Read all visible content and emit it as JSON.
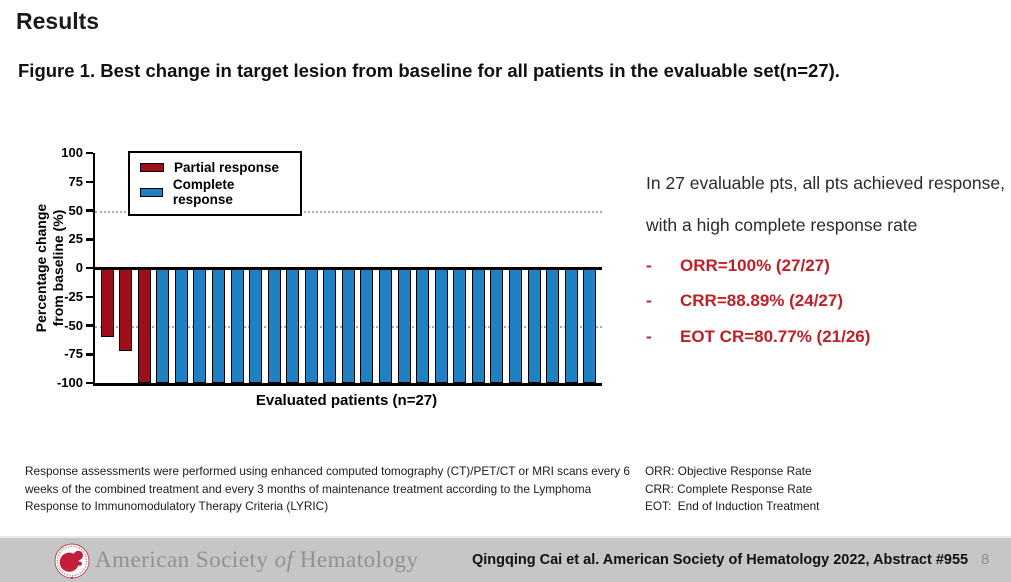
{
  "slide": {
    "title": "Results",
    "figure_title": "Figure 1. Best change in target lesion from baseline for all patients in the evaluable set(n=27)."
  },
  "chart_data": {
    "type": "bar",
    "title": "Best change in target lesion from baseline for all patients in the evaluable set (n=27)",
    "xlabel": "Evaluated patients (n=27)",
    "ylabel": "Percentage change from baseline (%)",
    "ylabel_lines": [
      "Percentage change",
      "from baseline (%)"
    ],
    "ylim": [
      -100,
      100
    ],
    "yticks": [
      100,
      75,
      50,
      25,
      0,
      -25,
      -50,
      -75,
      -100
    ],
    "reference_lines": [
      50,
      -50
    ],
    "grid": "dotted horizontal lines at +50 and -50",
    "legend_position": "top-left inside plot",
    "legend": [
      {
        "key": "partial",
        "label": "Partial response",
        "color": "#9e0f1b"
      },
      {
        "key": "complete",
        "label": "Complete response",
        "color": "#1f80c4"
      }
    ],
    "bars": [
      {
        "patient": 1,
        "value": -60,
        "response": "partial"
      },
      {
        "patient": 2,
        "value": -72,
        "response": "partial"
      },
      {
        "patient": 3,
        "value": -100,
        "response": "partial"
      },
      {
        "patient": 4,
        "value": -100,
        "response": "complete"
      },
      {
        "patient": 5,
        "value": -100,
        "response": "complete"
      },
      {
        "patient": 6,
        "value": -100,
        "response": "complete"
      },
      {
        "patient": 7,
        "value": -100,
        "response": "complete"
      },
      {
        "patient": 8,
        "value": -100,
        "response": "complete"
      },
      {
        "patient": 9,
        "value": -100,
        "response": "complete"
      },
      {
        "patient": 10,
        "value": -100,
        "response": "complete"
      },
      {
        "patient": 11,
        "value": -100,
        "response": "complete"
      },
      {
        "patient": 12,
        "value": -100,
        "response": "complete"
      },
      {
        "patient": 13,
        "value": -100,
        "response": "complete"
      },
      {
        "patient": 14,
        "value": -100,
        "response": "complete"
      },
      {
        "patient": 15,
        "value": -100,
        "response": "complete"
      },
      {
        "patient": 16,
        "value": -100,
        "response": "complete"
      },
      {
        "patient": 17,
        "value": -100,
        "response": "complete"
      },
      {
        "patient": 18,
        "value": -100,
        "response": "complete"
      },
      {
        "patient": 19,
        "value": -100,
        "response": "complete"
      },
      {
        "patient": 20,
        "value": -100,
        "response": "complete"
      },
      {
        "patient": 21,
        "value": -100,
        "response": "complete"
      },
      {
        "patient": 22,
        "value": -100,
        "response": "complete"
      },
      {
        "patient": 23,
        "value": -100,
        "response": "complete"
      },
      {
        "patient": 24,
        "value": -100,
        "response": "complete"
      },
      {
        "patient": 25,
        "value": -100,
        "response": "complete"
      },
      {
        "patient": 26,
        "value": -100,
        "response": "complete"
      },
      {
        "patient": 27,
        "value": -100,
        "response": "complete"
      }
    ]
  },
  "summary": {
    "intro": "In 27 evaluable pts, all pts achieved response, with a high complete response rate",
    "accent_color": "#be2026",
    "bullets": [
      {
        "marker": "-",
        "text": "ORR=100% (27/27)"
      },
      {
        "marker": "-",
        "text": "CRR=88.89% (24/27)"
      },
      {
        "marker": "-",
        "text": "EOT CR=80.77% (21/26)"
      }
    ]
  },
  "footnotes": {
    "methods": "Response assessments were performed using enhanced computed tomography (CT)/PET/CT or MRI scans every 6 weeks of the combined treatment and every 3 months of maintenance treatment according to the Lymphoma Response to Immunomodulatory Therapy Criteria (LYRIC)",
    "abbreviations": [
      "ORR: Objective Response Rate",
      "CRR: Complete Response Rate",
      "EOT:  End of Induction Treatment"
    ]
  },
  "footer": {
    "logo": "ash-logo",
    "logo_color": "#c2203a",
    "org_name_part1": "American Society ",
    "org_name_part2": "of",
    "org_name_part3": " Hematology",
    "citation": "Qingqing Cai et al. American Society of Hematology 2022, Abstract #955",
    "page_number": "8"
  }
}
